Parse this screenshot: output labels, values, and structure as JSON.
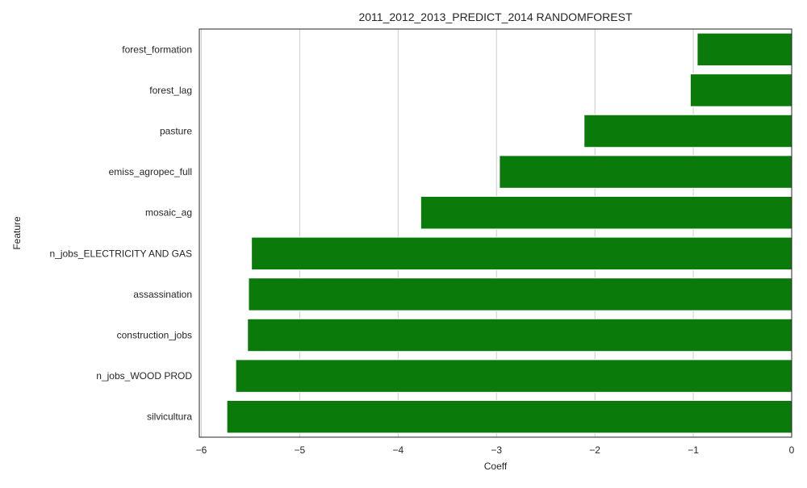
{
  "chart_data": {
    "type": "bar",
    "orientation": "horizontal",
    "title": "2011_2012_2013_PREDICT_2014 RANDOMFOREST",
    "xlabel": "Coeff",
    "ylabel": "Feature",
    "xlim": [
      -6.02,
      0
    ],
    "xticks": [
      -6,
      -5,
      -4,
      -3,
      -2,
      -1,
      0
    ],
    "xtick_labels": [
      "−6",
      "−5",
      "−4",
      "−3",
      "−2",
      "−1",
      "0"
    ],
    "grid": "vertical",
    "categories": [
      "forest_formation",
      "forest_lag",
      "pasture",
      "emiss_agropec_full",
      "mosaic_ag",
      "n_jobs_ELECTRICITY AND GAS",
      "assassination",
      "construction_jobs",
      "n_jobs_WOOD PROD",
      "silvicultura"
    ],
    "values": [
      -0.96,
      -1.03,
      -2.11,
      -2.97,
      -3.77,
      -5.49,
      -5.52,
      -5.53,
      -5.65,
      -5.74
    ],
    "colors": {
      "bar": "#0a7a0a",
      "bar_edge": "#ffffff",
      "grid": "#cccccc",
      "axis": "#262626"
    }
  }
}
